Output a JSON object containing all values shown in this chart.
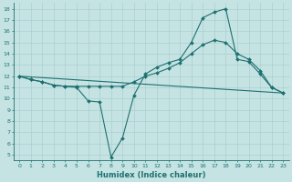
{
  "xlabel": "Humidex (Indice chaleur)",
  "xlim": [
    -0.5,
    23.5
  ],
  "ylim": [
    4.5,
    18.5
  ],
  "yticks": [
    5,
    6,
    7,
    8,
    9,
    10,
    11,
    12,
    13,
    14,
    15,
    16,
    17,
    18
  ],
  "xticks": [
    0,
    1,
    2,
    3,
    4,
    5,
    6,
    7,
    8,
    9,
    10,
    11,
    12,
    13,
    14,
    15,
    16,
    17,
    18,
    19,
    20,
    21,
    22,
    23
  ],
  "bg_color": "#c5e3e3",
  "line_color": "#1e7070",
  "grid_color": "#aacfcf",
  "line1_x": [
    0,
    1,
    2,
    3,
    4,
    5,
    6,
    7,
    8,
    9,
    10,
    11,
    12,
    13,
    14,
    15,
    16,
    17,
    18,
    19,
    20,
    21,
    22,
    23
  ],
  "line1_y": [
    12,
    11.7,
    11.5,
    11.2,
    11.1,
    11.0,
    9.8,
    9.7,
    4.8,
    6.5,
    10.3,
    12.2,
    12.8,
    13.2,
    13.5,
    15.0,
    17.2,
    17.7,
    18.0,
    13.5,
    13.3,
    12.2,
    11.0,
    10.5
  ],
  "line2_x": [
    0,
    1,
    2,
    3,
    4,
    5,
    6,
    7,
    8,
    9,
    10,
    11,
    12,
    13,
    14,
    15,
    16,
    17,
    18,
    19,
    20,
    21,
    22,
    23
  ],
  "line2_y": [
    12,
    11.7,
    11.5,
    11.2,
    11.1,
    11.1,
    11.1,
    11.1,
    11.1,
    11.1,
    11.5,
    12.0,
    12.3,
    12.7,
    13.2,
    14.0,
    14.8,
    15.2,
    15.0,
    14.0,
    13.5,
    12.5,
    11.0,
    10.5
  ],
  "line3_x": [
    0,
    23
  ],
  "line3_y": [
    12,
    10.5
  ]
}
